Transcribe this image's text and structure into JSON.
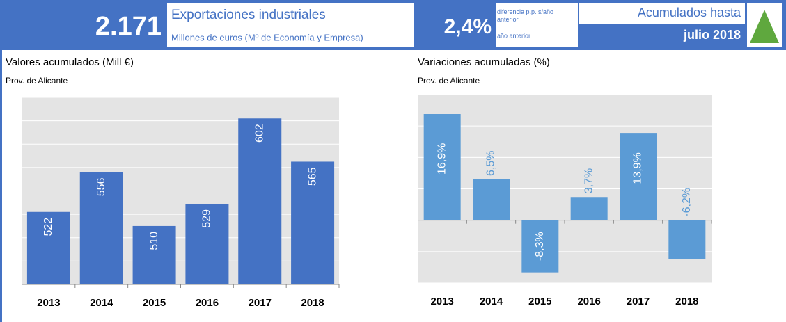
{
  "header": {
    "big_value": "2.171",
    "title": "Exportaciones industriales",
    "subtitle": "Millones de euros (Mº de Economía y Empresa)",
    "change_value": "2,4%",
    "change_note": "diferencia p.p. s/año anterior",
    "change_note2": "año anterior",
    "period_label": "Acumulados hasta",
    "period": "julio 2018"
  },
  "chart_data": [
    {
      "type": "bar",
      "title": "Valores acumulados (Mill €)",
      "subtitle": "Prov. de Alicante",
      "categories": [
        "2013",
        "2014",
        "2015",
        "2016",
        "2017",
        "2018"
      ],
      "values": [
        522,
        556,
        510,
        529,
        602,
        565
      ],
      "color": "#4472c4",
      "ylim": [
        460,
        620
      ],
      "yticks": [
        460,
        480,
        500,
        520,
        540,
        560,
        580,
        600,
        620
      ],
      "grid": true
    },
    {
      "type": "bar",
      "title": "Variaciones acumuladas (%)",
      "subtitle": "Prov. de Alicante",
      "categories": [
        "2013",
        "2014",
        "2015",
        "2016",
        "2017",
        "2018"
      ],
      "values": [
        16.9,
        6.5,
        -8.3,
        3.7,
        13.9,
        -6.2
      ],
      "value_labels": [
        "16,9%",
        "6,5%",
        "-8,3%",
        "3,7%",
        "13,9%",
        "-6,2%"
      ],
      "color": "#5b9bd5",
      "ylim": [
        -10,
        20
      ],
      "yticks": [
        -10,
        -5,
        0,
        5,
        10,
        15,
        20
      ],
      "grid": true
    }
  ]
}
